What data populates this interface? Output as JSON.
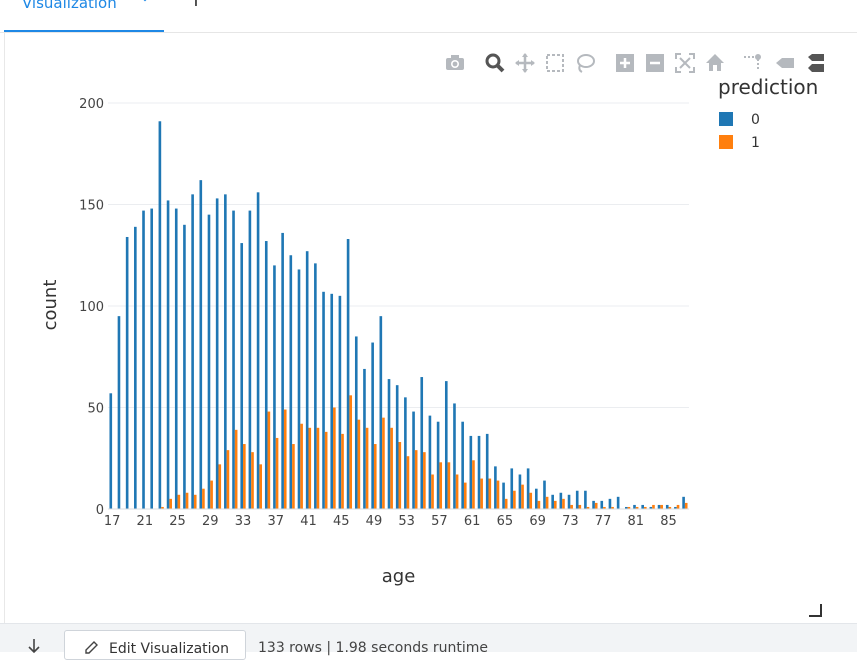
{
  "tab": {
    "label": "Visualization",
    "add_label": "+"
  },
  "toolbar_icons": [
    "camera-icon",
    "zoom-icon",
    "pan-icon",
    "box-select-icon",
    "lasso-select-icon",
    "zoom-in-icon",
    "zoom-out-icon",
    "autoscale-icon",
    "reset-axes-icon",
    "spike-lines-icon",
    "hover-closest-icon",
    "hover-compare-icon"
  ],
  "footer": {
    "edit_label": "Edit Visualization",
    "status": "133 rows  |  1.98 seconds runtime"
  },
  "colors": {
    "series0": "#1f77b4",
    "series1": "#ff7f0e",
    "accent": "#1e88e5"
  },
  "chart_data": {
    "type": "bar",
    "xlabel": "age",
    "ylabel": "count",
    "legend_title": "prediction",
    "legend_position": "top-right",
    "x": [
      17,
      18,
      19,
      20,
      21,
      22,
      23,
      24,
      25,
      26,
      27,
      28,
      29,
      30,
      31,
      32,
      33,
      34,
      35,
      36,
      37,
      38,
      39,
      40,
      41,
      42,
      43,
      44,
      45,
      46,
      47,
      48,
      49,
      50,
      51,
      52,
      53,
      54,
      55,
      56,
      57,
      58,
      59,
      60,
      61,
      62,
      63,
      64,
      65,
      66,
      67,
      68,
      69,
      70,
      71,
      72,
      73,
      74,
      75,
      76,
      77,
      78,
      79,
      80,
      81,
      82,
      83,
      84,
      85,
      86,
      87
    ],
    "xticks": [
      17,
      21,
      25,
      29,
      33,
      37,
      41,
      45,
      49,
      53,
      57,
      61,
      65,
      69,
      73,
      77,
      81,
      85
    ],
    "xlim": [
      16.5,
      87.5
    ],
    "ylim": [
      0,
      200
    ],
    "yticks": [
      0,
      50,
      100,
      150,
      200
    ],
    "grid": true,
    "series": [
      {
        "name": "0",
        "values": [
          57,
          95,
          134,
          139,
          147,
          148,
          191,
          152,
          148,
          140,
          155,
          162,
          145,
          153,
          155,
          147,
          131,
          147,
          156,
          132,
          120,
          136,
          125,
          118,
          127,
          121,
          107,
          106,
          105,
          133,
          85,
          69,
          82,
          95,
          64,
          61,
          55,
          48,
          65,
          46,
          43,
          63,
          52,
          43,
          36,
          36,
          37,
          21,
          13,
          20,
          17,
          20,
          10,
          14,
          7,
          8,
          7,
          9,
          9,
          4,
          4,
          5,
          6,
          1,
          2,
          2,
          1,
          2,
          2,
          1,
          6
        ]
      },
      {
        "name": "1",
        "values": [
          0,
          0,
          0,
          0,
          0,
          0,
          1,
          5,
          7,
          8,
          7,
          10,
          14,
          22,
          29,
          39,
          32,
          28,
          22,
          48,
          35,
          49,
          32,
          42,
          40,
          40,
          38,
          50,
          37,
          56,
          44,
          40,
          32,
          45,
          40,
          33,
          26,
          29,
          28,
          17,
          23,
          23,
          17,
          13,
          24,
          15,
          15,
          14,
          5,
          9,
          12,
          8,
          4,
          6,
          4,
          5,
          2,
          2,
          1,
          3,
          1,
          1,
          0,
          1,
          1,
          1,
          2,
          2,
          1,
          2,
          3
        ]
      }
    ]
  }
}
